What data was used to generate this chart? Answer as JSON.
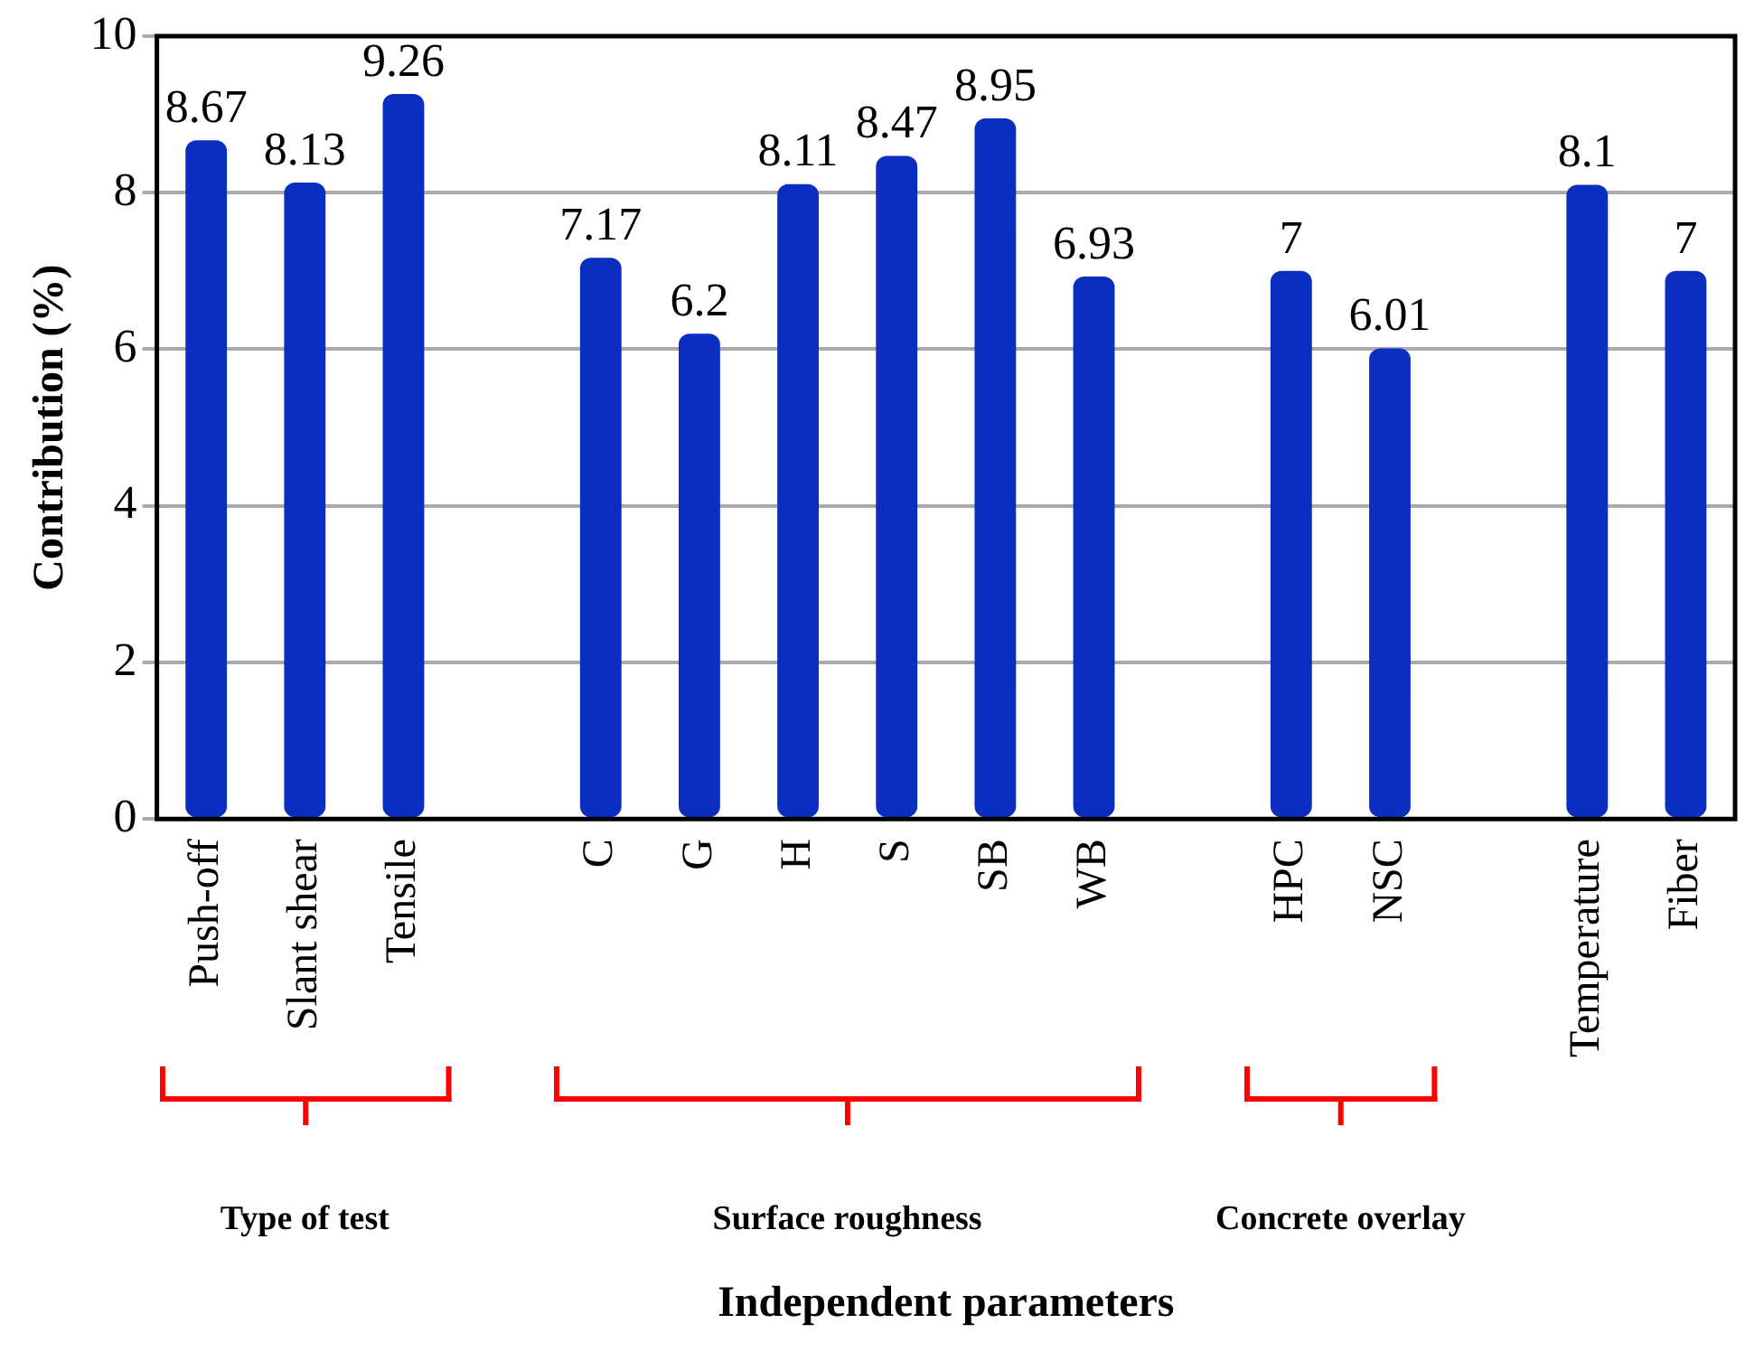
{
  "chart_data": {
    "type": "bar",
    "ylabel": "Contribution (%)",
    "categories": [
      "Push-off",
      "Slant shear",
      "Tensile",
      null,
      "C",
      "G",
      "H",
      "S",
      "SB",
      "WB",
      null,
      "HPC",
      "NSC",
      null,
      "Temperature",
      "Fiber"
    ],
    "values": [
      8.67,
      8.13,
      9.26,
      null,
      7.17,
      6.2,
      8.11,
      8.47,
      8.95,
      6.93,
      null,
      7,
      6.01,
      null,
      8.1,
      7
    ],
    "color": "#0a2fc0",
    "ylim": [
      0,
      10
    ],
    "yticks": [
      0,
      2,
      4,
      6,
      8,
      10
    ],
    "grid": "y",
    "data_labels": true,
    "legend": false,
    "annotations": [
      "Type of test",
      "Surface roughness",
      "Concrete overlay",
      "Independent parameters"
    ]
  }
}
